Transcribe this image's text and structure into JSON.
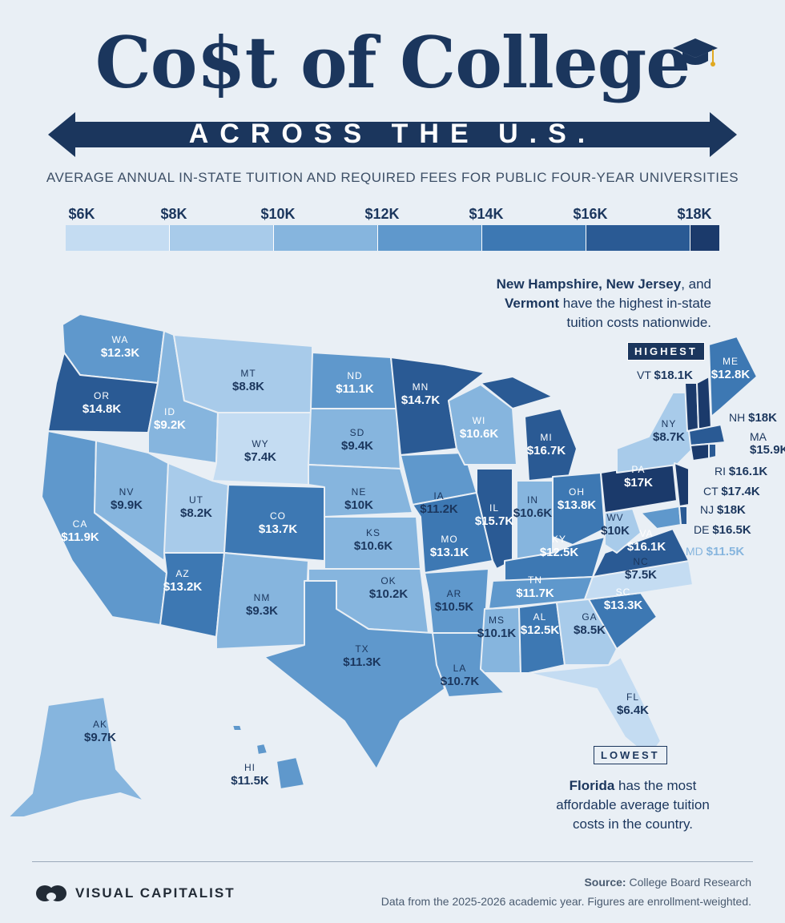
{
  "header": {
    "title": "Co$t of College",
    "subtitle": "ACROSS THE U.S.",
    "description": "AVERAGE ANNUAL IN-STATE TUITION AND REQUIRED FEES FOR PUBLIC FOUR-YEAR UNIVERSITIES"
  },
  "legend": {
    "labels": [
      "$6K",
      "$8K",
      "$10K",
      "$12K",
      "$14K",
      "$16K",
      "$18K"
    ],
    "colors": [
      "#c4dcf2",
      "#a8cbea",
      "#86b5de",
      "#5f98cc",
      "#3d78b3",
      "#2a5a94",
      "#1b3a6b"
    ]
  },
  "states": [
    {
      "abbr": "WA",
      "value": "$12.3K"
    },
    {
      "abbr": "OR",
      "value": "$14.8K"
    },
    {
      "abbr": "CA",
      "value": "$11.9K"
    },
    {
      "abbr": "ID",
      "value": "$9.2K"
    },
    {
      "abbr": "NV",
      "value": "$9.9K"
    },
    {
      "abbr": "MT",
      "value": "$8.8K"
    },
    {
      "abbr": "WY",
      "value": "$7.4K"
    },
    {
      "abbr": "UT",
      "value": "$8.2K"
    },
    {
      "abbr": "AZ",
      "value": "$13.2K"
    },
    {
      "abbr": "CO",
      "value": "$13.7K"
    },
    {
      "abbr": "NM",
      "value": "$9.3K"
    },
    {
      "abbr": "ND",
      "value": "$11.1K"
    },
    {
      "abbr": "SD",
      "value": "$9.4K"
    },
    {
      "abbr": "NE",
      "value": "$10K"
    },
    {
      "abbr": "KS",
      "value": "$10.6K"
    },
    {
      "abbr": "OK",
      "value": "$10.2K"
    },
    {
      "abbr": "TX",
      "value": "$11.3K"
    },
    {
      "abbr": "MN",
      "value": "$14.7K"
    },
    {
      "abbr": "IA",
      "value": "$11.2K"
    },
    {
      "abbr": "MO",
      "value": "$13.1K"
    },
    {
      "abbr": "AR",
      "value": "$10.5K"
    },
    {
      "abbr": "LA",
      "value": "$10.7K"
    },
    {
      "abbr": "WI",
      "value": "$10.6K"
    },
    {
      "abbr": "IL",
      "value": "$15.7K"
    },
    {
      "abbr": "MI",
      "value": "$16.7K"
    },
    {
      "abbr": "IN",
      "value": "$10.6K"
    },
    {
      "abbr": "OH",
      "value": "$13.8K"
    },
    {
      "abbr": "KY",
      "value": "$12.5K"
    },
    {
      "abbr": "TN",
      "value": "$11.7K"
    },
    {
      "abbr": "MS",
      "value": "$10.1K"
    },
    {
      "abbr": "AL",
      "value": "$12.5K"
    },
    {
      "abbr": "GA",
      "value": "$8.5K"
    },
    {
      "abbr": "FL",
      "value": "$6.4K"
    },
    {
      "abbr": "SC",
      "value": "$13.3K"
    },
    {
      "abbr": "NC",
      "value": "$7.5K"
    },
    {
      "abbr": "VA",
      "value": "$16.1K"
    },
    {
      "abbr": "WV",
      "value": "$10K"
    },
    {
      "abbr": "PA",
      "value": "$17K"
    },
    {
      "abbr": "NY",
      "value": "$8.7K"
    },
    {
      "abbr": "ME",
      "value": "$12.8K"
    },
    {
      "abbr": "AK",
      "value": "$9.7K"
    },
    {
      "abbr": "HI",
      "value": "$11.5K"
    }
  ],
  "side_states": [
    {
      "abbr": "VT",
      "value": "$18.1K"
    },
    {
      "abbr": "NH",
      "value": "$18K"
    },
    {
      "abbr": "MA",
      "value": "$15.9K"
    },
    {
      "abbr": "RI",
      "value": "$16.1K"
    },
    {
      "abbr": "CT",
      "value": "$17.4K"
    },
    {
      "abbr": "NJ",
      "value": "$18K"
    },
    {
      "abbr": "DE",
      "value": "$16.5K"
    },
    {
      "abbr": "MD",
      "value": "$11.5K"
    }
  ],
  "callouts": {
    "highest_tag": "HIGHEST",
    "lowest_tag": "LOWEST",
    "highest_bold_1": "New Hampshire, New Jersey",
    "highest_text_1": ", and",
    "highest_bold_2": "Vermont",
    "highest_text_2": " have the highest in-state",
    "highest_text_3": "tuition costs nationwide.",
    "lowest_bold": "Florida",
    "lowest_text_1": " has the most",
    "lowest_text_2": "affordable average tuition",
    "lowest_text_3": "costs in the country."
  },
  "footer": {
    "brand": "VISUAL CAPITALIST",
    "source_label": "Source:",
    "source_value": "College Board Research",
    "note": "Data from the 2025-2026 academic year. Figures are enrollment-weighted."
  }
}
